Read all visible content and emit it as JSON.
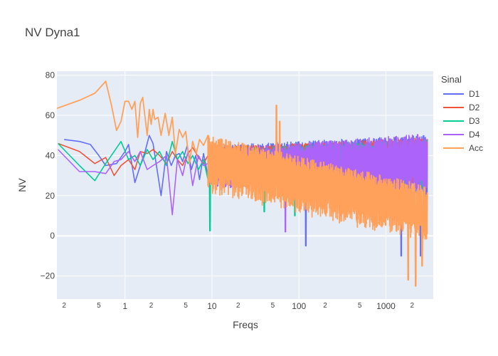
{
  "chart_data": {
    "type": "line",
    "title": "NV Dyna1",
    "xlabel": "Freqs",
    "ylabel": "NV",
    "x_scale": "log",
    "xlim": [
      0.165,
      3500
    ],
    "ylim": [
      -31.5,
      82
    ],
    "grid": true,
    "legend_title": "Sinal",
    "legend_position": "top-right",
    "y_ticks": [
      -20,
      0,
      20,
      40,
      60,
      80
    ],
    "x_major_ticks": [
      1,
      10,
      100,
      1000
    ],
    "x_major_labels": [
      "1",
      "10",
      "100",
      "1000"
    ],
    "x_minor_ticks": [
      0.2,
      0.5,
      2,
      5,
      20,
      50,
      200,
      500,
      2000
    ],
    "x_minor_labels": [
      "2",
      "5",
      "2",
      "5",
      "2",
      "5",
      "2",
      "5",
      "2"
    ],
    "series": [
      {
        "name": "D1",
        "color": "#636efa",
        "x": [
          0.2,
          0.3,
          0.4,
          0.5,
          0.6,
          0.8,
          1.0,
          1.1,
          1.3,
          1.5,
          1.7,
          1.9,
          2.1,
          2.3,
          2.6,
          3.0,
          3.4,
          3.8,
          4.2,
          4.6,
          5.2,
          5.8,
          6.5,
          7.2,
          8.0,
          9.0
        ],
        "values": [
          48,
          47,
          45.5,
          40,
          35,
          36,
          42,
          45.5,
          26.5,
          35,
          42,
          50,
          46,
          35,
          20,
          42,
          35,
          40,
          41,
          37,
          45,
          33,
          40,
          28,
          41,
          30
        ],
        "noise": {
          "x_start": 9.0,
          "x_end": 3000,
          "upper_start": 45,
          "upper_end": 50,
          "lower_start": 28,
          "lower_end": 24,
          "spikes": [
            [
              120,
              -5
            ],
            [
              1500,
              -10
            ],
            [
              2500,
              -10
            ]
          ],
          "edge_drop": [
            2600,
            3000,
            12
          ]
        }
      },
      {
        "name": "D2",
        "color": "#ef553b",
        "x": [
          0.17,
          0.3,
          0.45,
          0.6,
          0.75,
          0.9,
          1.1,
          1.3,
          1.5,
          1.8,
          2.1,
          2.5,
          3.0,
          3.5,
          4.0,
          4.6,
          5.3,
          6.0,
          7.0,
          8.0,
          9.0
        ],
        "values": [
          46,
          42,
          36,
          39,
          30,
          35,
          38,
          33,
          42,
          41,
          43,
          40,
          36,
          42,
          38,
          35,
          41,
          44,
          39,
          36,
          40
        ],
        "noise": {
          "x_start": 9.0,
          "x_end": 3000,
          "upper_start": 44,
          "upper_end": 49,
          "lower_start": 30,
          "lower_end": 28,
          "spikes": [],
          "edge_drop": [
            2800,
            3000,
            30
          ]
        }
      },
      {
        "name": "D3",
        "color": "#00cc96",
        "x": [
          0.17,
          0.3,
          0.45,
          0.6,
          0.75,
          0.9,
          1.1,
          1.3,
          1.5,
          1.8,
          2.1,
          2.5,
          3.0,
          3.5,
          4.0,
          4.6,
          5.3,
          6.0,
          7.0,
          8.0,
          9.0
        ],
        "values": [
          46,
          35,
          27.5,
          36,
          42,
          47,
          38,
          40,
          35,
          43,
          38,
          42,
          35,
          47,
          38,
          42,
          36,
          40,
          33,
          38,
          28
        ],
        "noise": {
          "x_start": 9.0,
          "x_end": 3000,
          "upper_start": 43,
          "upper_end": 48,
          "lower_start": 28,
          "lower_end": 26,
          "spikes": [
            [
              9.5,
              2.5
            ],
            [
              40,
              12
            ],
            [
              90,
              10
            ]
          ],
          "edge_drop": [
            2800,
            3000,
            30
          ]
        }
      },
      {
        "name": "D4",
        "color": "#ab63fa",
        "x": [
          0.17,
          0.3,
          0.45,
          0.6,
          0.75,
          0.9,
          1.1,
          1.3,
          1.5,
          1.8,
          2.1,
          2.5,
          3.0,
          3.5,
          4.0,
          4.6,
          5.3,
          6.0,
          7.0,
          8.0,
          9.0
        ],
        "values": [
          43,
          32,
          32,
          31,
          37,
          38,
          42,
          37,
          42,
          33,
          35,
          37,
          40,
          10.5,
          38,
          30,
          42,
          25,
          40,
          35,
          36
        ],
        "noise": {
          "x_start": 9.0,
          "x_end": 3000,
          "upper_start": 43,
          "upper_end": 51,
          "lower_start": 28,
          "lower_end": 22,
          "spikes": [
            [
              70,
              2
            ],
            [
              300,
              10
            ]
          ],
          "edge_drop": [
            2800,
            3000,
            25
          ]
        }
      },
      {
        "name": "Acc",
        "color": "#ffa15a",
        "x": [
          0.165,
          0.3,
          0.45,
          0.52,
          0.6,
          0.7,
          0.8,
          0.9,
          1.0,
          1.1,
          1.2,
          1.3,
          1.4,
          1.5,
          1.6,
          1.8,
          1.9,
          2.0,
          2.1,
          2.2,
          2.4,
          2.6,
          2.9,
          3.2,
          3.5,
          3.8,
          4.2,
          4.6,
          5.0,
          5.5,
          6.0,
          6.6,
          7.2,
          8.0,
          9.0
        ],
        "values": [
          63.5,
          67.5,
          71,
          74,
          77,
          65,
          52.5,
          57,
          67,
          67,
          63,
          67,
          49,
          66,
          69,
          50,
          63,
          55.5,
          63,
          58,
          59,
          50,
          61,
          50,
          59,
          41,
          53,
          49,
          52,
          36,
          47,
          41,
          48,
          45,
          50
        ],
        "noise": {
          "x_start": 9.0,
          "x_end": 3000,
          "upper_start": 50,
          "upper_end": 25,
          "lower_start": 25,
          "lower_end": 0,
          "spikes": [
            [
              55,
              65
            ],
            [
              60,
              57
            ],
            [
              1800,
              -22
            ],
            [
              2200,
              -25
            ],
            [
              2600,
              -15
            ]
          ],
          "edge_drop": [
            2700,
            3000,
            -5
          ]
        }
      }
    ]
  }
}
